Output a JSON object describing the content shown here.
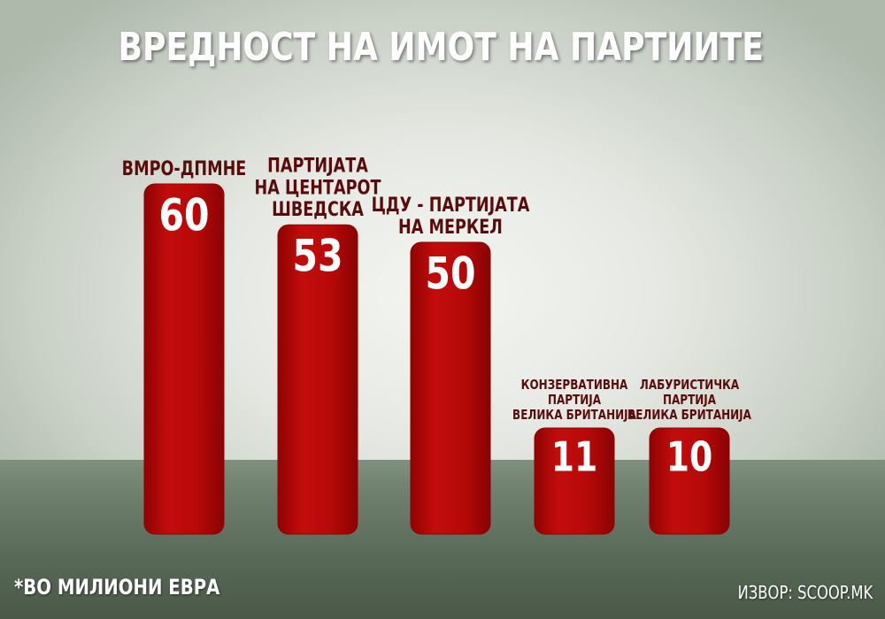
{
  "chart_data": {
    "type": "bar",
    "title": "ВРЕДНОСТ НА ИМОТ НА ПАРТИИТЕ",
    "categories": [
      [
        "ВМРО-ДПМНЕ"
      ],
      [
        "ПАРТИЈАТА",
        "НА ЦЕНТАРОТ",
        "ШВЕДСКА"
      ],
      [
        "ЦДУ - ПАРТИЈАТА",
        "НА МЕРКЕЛ"
      ],
      [
        "КОНЗЕРВАТИВНА",
        "ПАРТИЈА",
        "ВЕЛИКА БРИТАНИЈА"
      ],
      [
        "ЛАБУРИСТИЧКА",
        "ПАРТИЈА",
        "ВЕЛИКА БРИТАНИЈА"
      ]
    ],
    "values": [
      60,
      53,
      50,
      11,
      10
    ],
    "value_labels": [
      "60",
      "53",
      "50",
      "11",
      "10"
    ],
    "unit_note": "*ВО МИЛИОНИ ЕВРА",
    "source": "ИЗВОР: SCOOP.MK",
    "colors": {
      "bar": "#b50a0a",
      "bar_dark": "#8f0303",
      "label": "#5a0b0b",
      "value": "#ffffff"
    }
  }
}
